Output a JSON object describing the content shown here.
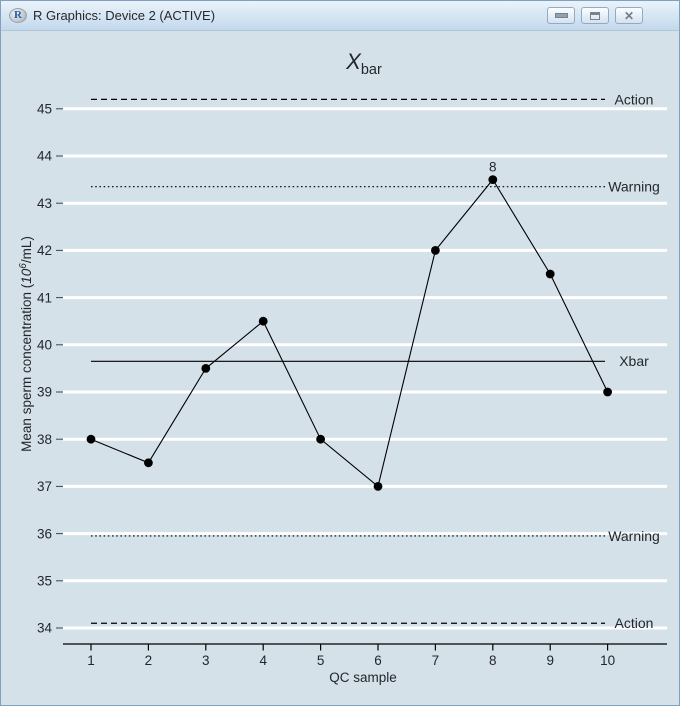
{
  "window": {
    "title": "R Graphics: Device 2 (ACTIVE)",
    "icon": "r-logo",
    "controls": [
      {
        "name": "minimize",
        "glyph": "─"
      },
      {
        "name": "restore",
        "glyph": "▭"
      },
      {
        "name": "close",
        "glyph": "✕"
      }
    ]
  },
  "chart_data": {
    "type": "line",
    "title": {
      "main": "X",
      "sub": "bar"
    },
    "xlabel": "QC sample",
    "ylabel": {
      "prefix": "Mean sperm concentration (",
      "base": "10",
      "exponent": "6",
      "suffix": "/mL)"
    },
    "x": [
      1,
      2,
      3,
      4,
      5,
      6,
      7,
      8,
      9,
      10
    ],
    "values": [
      38,
      37.5,
      39.5,
      40.5,
      38,
      37,
      42,
      43.5,
      41.5,
      39
    ],
    "point_annotation": {
      "x": 8,
      "y": 43.5,
      "text": "8"
    },
    "xticks": [
      1,
      2,
      3,
      4,
      5,
      6,
      7,
      8,
      9,
      10
    ],
    "yticks": [
      34,
      35,
      36,
      37,
      38,
      39,
      40,
      41,
      42,
      43,
      44,
      45
    ],
    "xlim": [
      1,
      10
    ],
    "ylim": [
      33.6,
      45.8
    ],
    "grid": true,
    "legend_position": "right-margin",
    "control_lines": [
      {
        "value": 45.2,
        "label": "Action",
        "style": "dashed"
      },
      {
        "value": 43.35,
        "label": "Warning",
        "style": "dotted"
      },
      {
        "value": 39.65,
        "label": "Xbar",
        "style": "solid"
      },
      {
        "value": 35.95,
        "label": "Warning",
        "style": "dotted"
      },
      {
        "value": 34.1,
        "label": "Action",
        "style": "dashed"
      }
    ],
    "colors": {
      "plot_bg": "#d5e1e9",
      "gridline": "#ffffff",
      "series": "#000000",
      "text": "#23272b",
      "tick": "#3e4850"
    }
  }
}
